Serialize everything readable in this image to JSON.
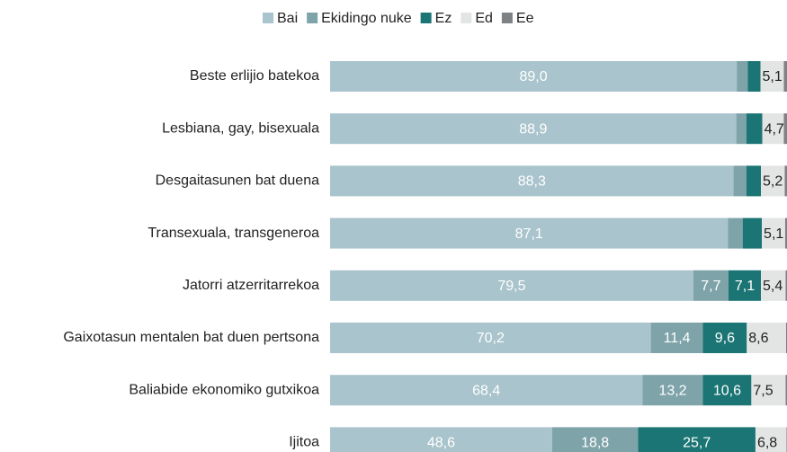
{
  "chart_data": {
    "type": "stacked_bar_horizontal",
    "categories": [
      "Beste erlijio batekoa",
      "Lesbiana, gay, bisexuala",
      "Desgaitasunen bat duena",
      "Transexuala, transgeneroa",
      "Jatorri atzerritarrekoa",
      "Gaixotasun mentalen bat duen pertsona",
      "Baliabide ekonomiko gutxikoa",
      "Ijitoa"
    ],
    "series": [
      {
        "name": "Bai",
        "color": "#a9c4cc",
        "values": [
          89.0,
          88.9,
          88.3,
          87.1,
          79.5,
          70.2,
          68.4,
          48.6
        ],
        "value_labels": [
          "89,0",
          "88,9",
          "88,3",
          "87,1",
          "79,5",
          "70,2",
          "68,4",
          "48,6"
        ]
      },
      {
        "name": "Ekidingo nuke",
        "color": "#7ea3a9",
        "values": [
          2.4,
          2.2,
          2.8,
          3.2,
          7.7,
          11.4,
          13.2,
          18.8
        ],
        "value_labels": [
          null,
          null,
          null,
          null,
          "7,7",
          "11,4",
          "13,2",
          "18,8"
        ]
      },
      {
        "name": "Ez",
        "color": "#1b7574",
        "values": [
          2.8,
          3.5,
          3.2,
          4.2,
          7.1,
          9.6,
          10.6,
          25.7
        ],
        "value_labels": [
          null,
          null,
          null,
          null,
          "7,1",
          "9,6",
          "10,6",
          "25,7"
        ]
      },
      {
        "name": "Ed",
        "color": "#e3e5e5",
        "values": [
          5.1,
          4.7,
          5.2,
          5.1,
          5.4,
          8.6,
          7.5,
          6.8
        ],
        "value_labels": [
          "5,1",
          "4,7",
          "5,2",
          "5,1",
          "5,4",
          "8,6",
          "7,5",
          "6,8"
        ]
      },
      {
        "name": "Ee",
        "color": "#7f8285",
        "values": [
          0.7,
          0.7,
          0.5,
          0.4,
          0.3,
          0.2,
          0.3,
          0.1
        ]
      }
    ],
    "xlim": [
      0,
      100
    ],
    "legend": "top"
  }
}
